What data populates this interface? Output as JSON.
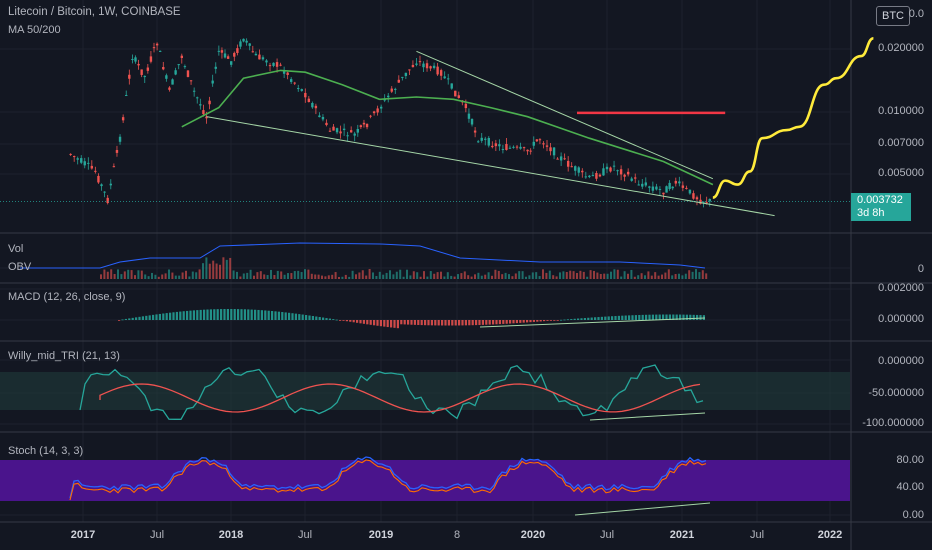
{
  "header": {
    "symbol_title": "Litecoin / Bitcoin, 1W, COINBASE",
    "ma_label": "MA 50/200",
    "currency_button": "BTC"
  },
  "panes": {
    "vol_label": "Vol",
    "obv_label": "OBV",
    "macd_label": "MACD (12, 26, close, 9)",
    "willy_label": "Willy_mid_TRI (21, 13)",
    "stoch_label": "Stoch (14, 3, 3)"
  },
  "price_axis": {
    "ticks": [
      "0.0",
      "0.020000",
      "0.010000",
      "0.007000",
      "0.005000"
    ],
    "last_price": "0.003732",
    "countdown": "3d 8h"
  },
  "vol_axis": {
    "ticks": [
      "0"
    ]
  },
  "macd_axis": {
    "ticks": [
      "0.002000",
      "0.000000"
    ]
  },
  "willy_axis": {
    "ticks": [
      "0.000000",
      "-50.000000",
      "-100.000000"
    ]
  },
  "stoch_axis": {
    "ticks": [
      "80.00",
      "40.00",
      "0.00"
    ]
  },
  "time_axis": {
    "labels": [
      "2017",
      "Jul",
      "2018",
      "Jul",
      "2019",
      "8",
      "2020",
      "Jul",
      "2021",
      "Jul",
      "2022"
    ]
  },
  "colors": {
    "background": "#131722",
    "up": "#26a69a",
    "down": "#ef5350",
    "ma": "#4caf50",
    "projection": "#ffeb3b",
    "resistance": "#f23645",
    "obv": "#2962ff",
    "stoch_band": "#4a148c"
  },
  "chart_data": {
    "type": "line",
    "title": "Litecoin / Bitcoin, 1W, COINBASE",
    "indicators": [
      "MA 50/200",
      "Vol",
      "OBV",
      "MACD (12, 26, close, 9)",
      "Willy_mid_TRI (21, 13)",
      "Stoch (14, 3, 3)"
    ],
    "price_scale": "log",
    "x_labels": [
      "2017",
      "Jul",
      "2018",
      "Jul",
      "2019",
      "8",
      "2020",
      "Jul",
      "2021",
      "Jul",
      "2022"
    ],
    "price_ticks": [
      0.02,
      0.01,
      0.007,
      0.005
    ],
    "last_price": 0.003732,
    "resistance_level": 0.0099,
    "price_path": [
      {
        "t": "2016-12",
        "p": 0.0063
      },
      {
        "t": "2017-02",
        "p": 0.0052
      },
      {
        "t": "2017-03",
        "p": 0.0038
      },
      {
        "t": "2017-04",
        "p": 0.0075
      },
      {
        "t": "2017-05",
        "p": 0.0185
      },
      {
        "t": "2017-06",
        "p": 0.0148
      },
      {
        "t": "2017-07",
        "p": 0.0215
      },
      {
        "t": "2017-08",
        "p": 0.0126
      },
      {
        "t": "2017-09",
        "p": 0.0185
      },
      {
        "t": "2017-10",
        "p": 0.0125
      },
      {
        "t": "2017-11",
        "p": 0.0095
      },
      {
        "t": "2017-12",
        "p": 0.0195
      },
      {
        "t": "2018-01",
        "p": 0.0175
      },
      {
        "t": "2018-02",
        "p": 0.0225
      },
      {
        "t": "2018-03",
        "p": 0.0185
      },
      {
        "t": "2018-05",
        "p": 0.0165
      },
      {
        "t": "2018-07",
        "p": 0.0122
      },
      {
        "t": "2018-09",
        "p": 0.0082
      },
      {
        "t": "2018-11",
        "p": 0.0078
      },
      {
        "t": "2018-12",
        "p": 0.0088
      },
      {
        "t": "2019-02",
        "p": 0.0125
      },
      {
        "t": "2019-04",
        "p": 0.0175
      },
      {
        "t": "2019-06",
        "p": 0.0155
      },
      {
        "t": "2019-08",
        "p": 0.0105
      },
      {
        "t": "2019-09",
        "p": 0.0075
      },
      {
        "t": "2019-11",
        "p": 0.0068
      },
      {
        "t": "2020-01",
        "p": 0.0065
      },
      {
        "t": "2020-02",
        "p": 0.0075
      },
      {
        "t": "2020-04",
        "p": 0.0058
      },
      {
        "t": "2020-06",
        "p": 0.0048
      },
      {
        "t": "2020-08",
        "p": 0.0055
      },
      {
        "t": "2020-10",
        "p": 0.0046
      },
      {
        "t": "2020-12",
        "p": 0.0042
      },
      {
        "t": "2021-01",
        "p": 0.0046
      },
      {
        "t": "2021-03",
        "p": 0.0038
      },
      {
        "t": "2021-04",
        "p": 0.003732
      }
    ],
    "ma_path": [
      {
        "t": "2017-09",
        "p": 0.0085
      },
      {
        "t": "2017-12",
        "p": 0.0105
      },
      {
        "t": "2018-02",
        "p": 0.0145
      },
      {
        "t": "2018-05",
        "p": 0.0158
      },
      {
        "t": "2018-07",
        "p": 0.0155
      },
      {
        "t": "2018-10",
        "p": 0.0135
      },
      {
        "t": "2019-01",
        "p": 0.0115
      },
      {
        "t": "2019-04",
        "p": 0.0118
      },
      {
        "t": "2019-07",
        "p": 0.0115
      },
      {
        "t": "2019-10",
        "p": 0.0105
      },
      {
        "t": "2020-01",
        "p": 0.0095
      },
      {
        "t": "2020-06",
        "p": 0.0075
      },
      {
        "t": "2020-12",
        "p": 0.0058
      },
      {
        "t": "2021-04",
        "p": 0.0045
      }
    ],
    "projection_path": [
      {
        "t": "2021-04",
        "p": 0.0039
      },
      {
        "t": "2021-05",
        "p": 0.0047
      },
      {
        "t": "2021-06",
        "p": 0.0045
      },
      {
        "t": "2021-07",
        "p": 0.0052
      },
      {
        "t": "2021-08",
        "p": 0.0075
      },
      {
        "t": "2021-10",
        "p": 0.0082
      },
      {
        "t": "2021-11",
        "p": 0.0085
      },
      {
        "t": "2022-01",
        "p": 0.0135
      },
      {
        "t": "2022-02",
        "p": 0.0145
      },
      {
        "t": "2022-04",
        "p": 0.0185
      },
      {
        "t": "2022-05",
        "p": 0.0225
      }
    ],
    "wedge_upper": [
      {
        "t": "2019-04",
        "p": 0.0195
      },
      {
        "t": "2021-04",
        "p": 0.0048
      }
    ],
    "wedge_lower": [
      {
        "t": "2017-11",
        "p": 0.0095
      },
      {
        "t": "2021-09",
        "p": 0.0032
      }
    ],
    "macd_zero_line": 0.0,
    "willy_levels": [
      0,
      -50,
      -100
    ],
    "stoch_levels": [
      80,
      40,
      0
    ]
  }
}
